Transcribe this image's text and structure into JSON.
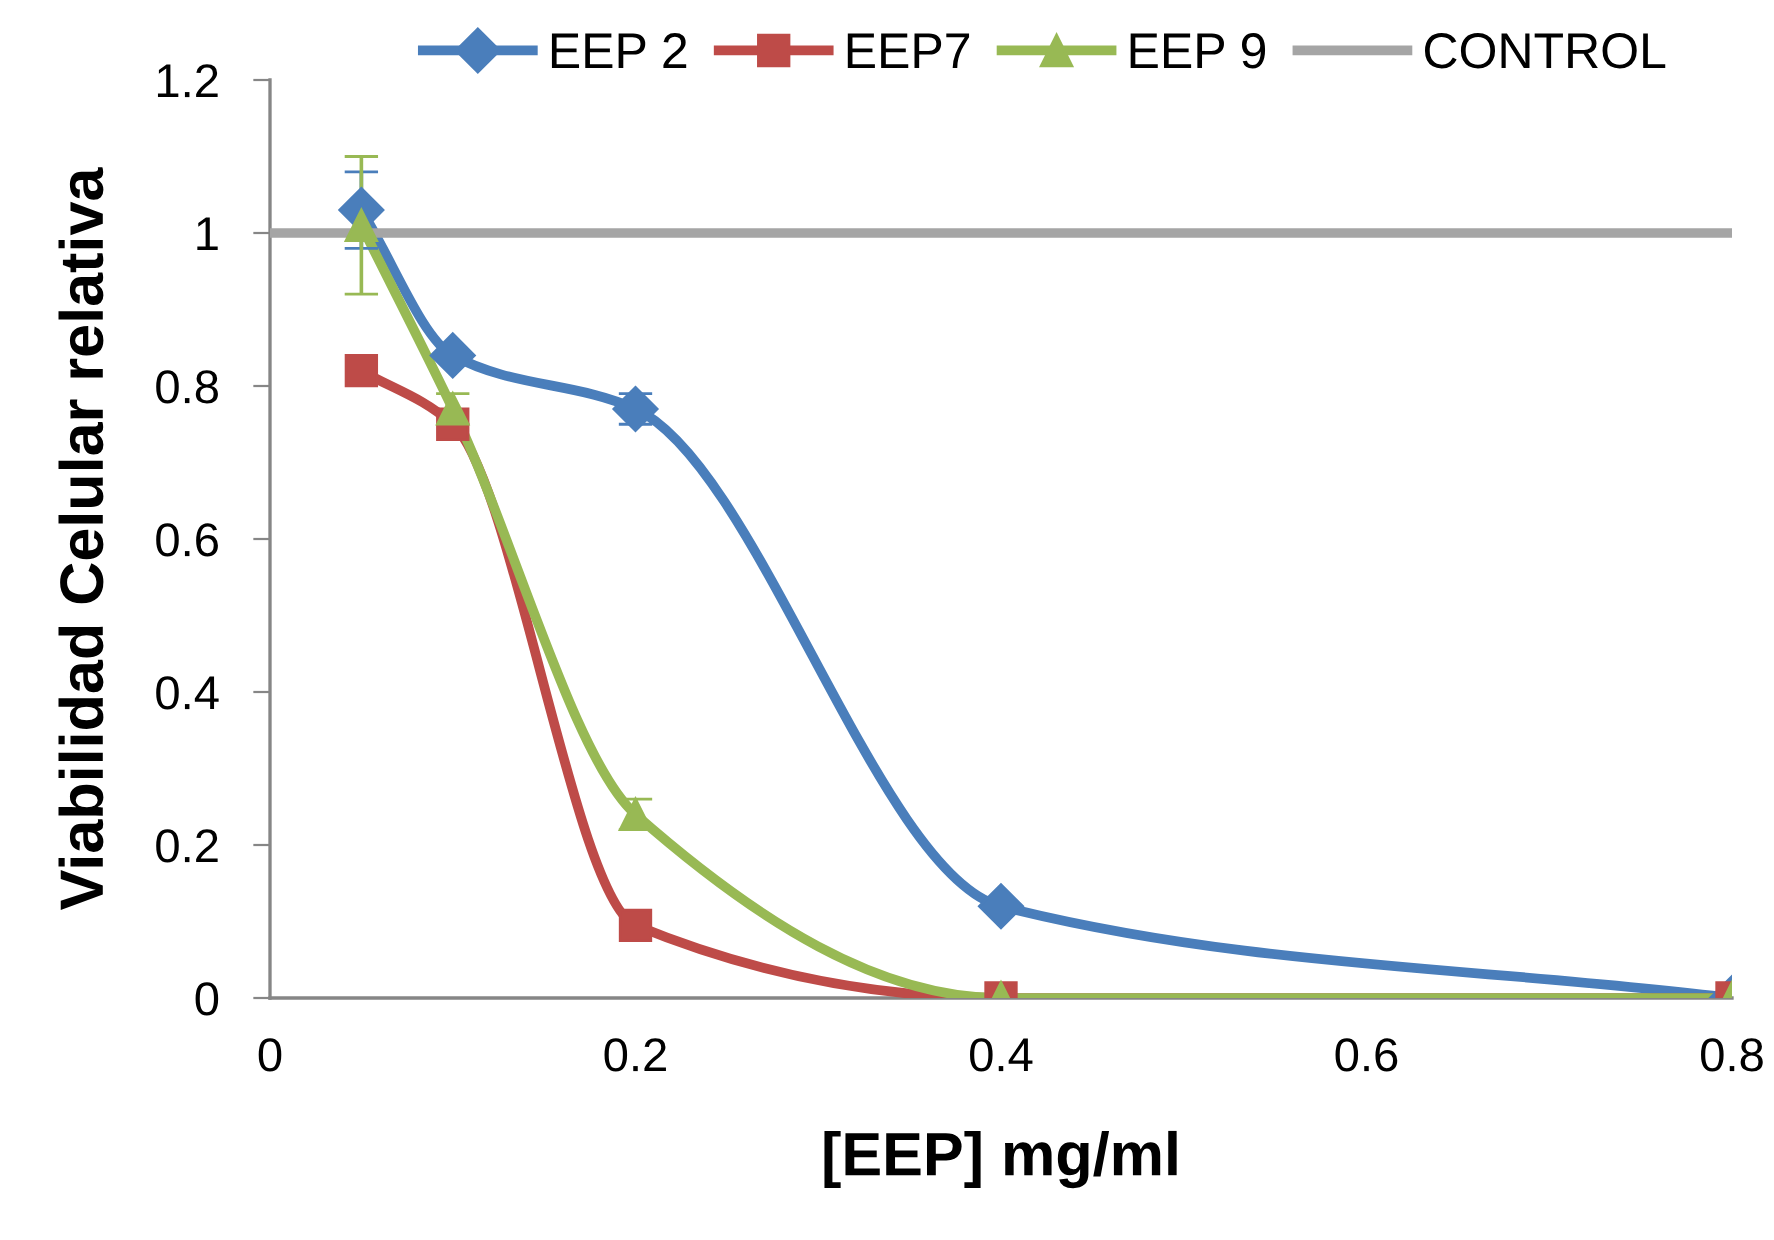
{
  "chart_data": {
    "type": "line",
    "xlabel": "[EEP] mg/ml",
    "ylabel": "Viabilidad Celular relativa",
    "xlim": [
      0,
      0.8
    ],
    "xticks": [
      0,
      0.2,
      0.4,
      0.6,
      0.8
    ],
    "ylim": [
      0,
      1.2
    ],
    "yticks": [
      0,
      0.2,
      0.4,
      0.6,
      0.8,
      1,
      1.2
    ],
    "grid": false,
    "legend": "top",
    "line_style": "solid",
    "series": [
      {
        "name": "EEP 2",
        "color": "#4a7ebb",
        "marker": "diamond",
        "x": [
          0.05,
          0.1,
          0.2,
          0.4,
          0.8
        ],
        "values": [
          1.03,
          0.84,
          0.77,
          0.12,
          0
        ],
        "errors": [
          0.05,
          null,
          0.02,
          null,
          null
        ]
      },
      {
        "name": "EEP7",
        "color": "#be4b48",
        "marker": "square",
        "x": [
          0.05,
          0.1,
          0.2,
          0.4,
          0.8
        ],
        "values": [
          0.82,
          0.75,
          0.095,
          0,
          0
        ]
      },
      {
        "name": "EEP 9",
        "color": "#98b954",
        "marker": "triangle",
        "x": [
          0.05,
          0.1,
          0.2,
          0.4,
          0.8
        ],
        "values": [
          1.01,
          0.77,
          0.24,
          0,
          0
        ],
        "errors": [
          0.09,
          0.02,
          0.02,
          null,
          null
        ]
      },
      {
        "name": "CONTROL",
        "color": "#a5a5a5",
        "marker": "none",
        "x": [
          0,
          0.8
        ],
        "values": [
          1,
          1
        ]
      }
    ]
  }
}
